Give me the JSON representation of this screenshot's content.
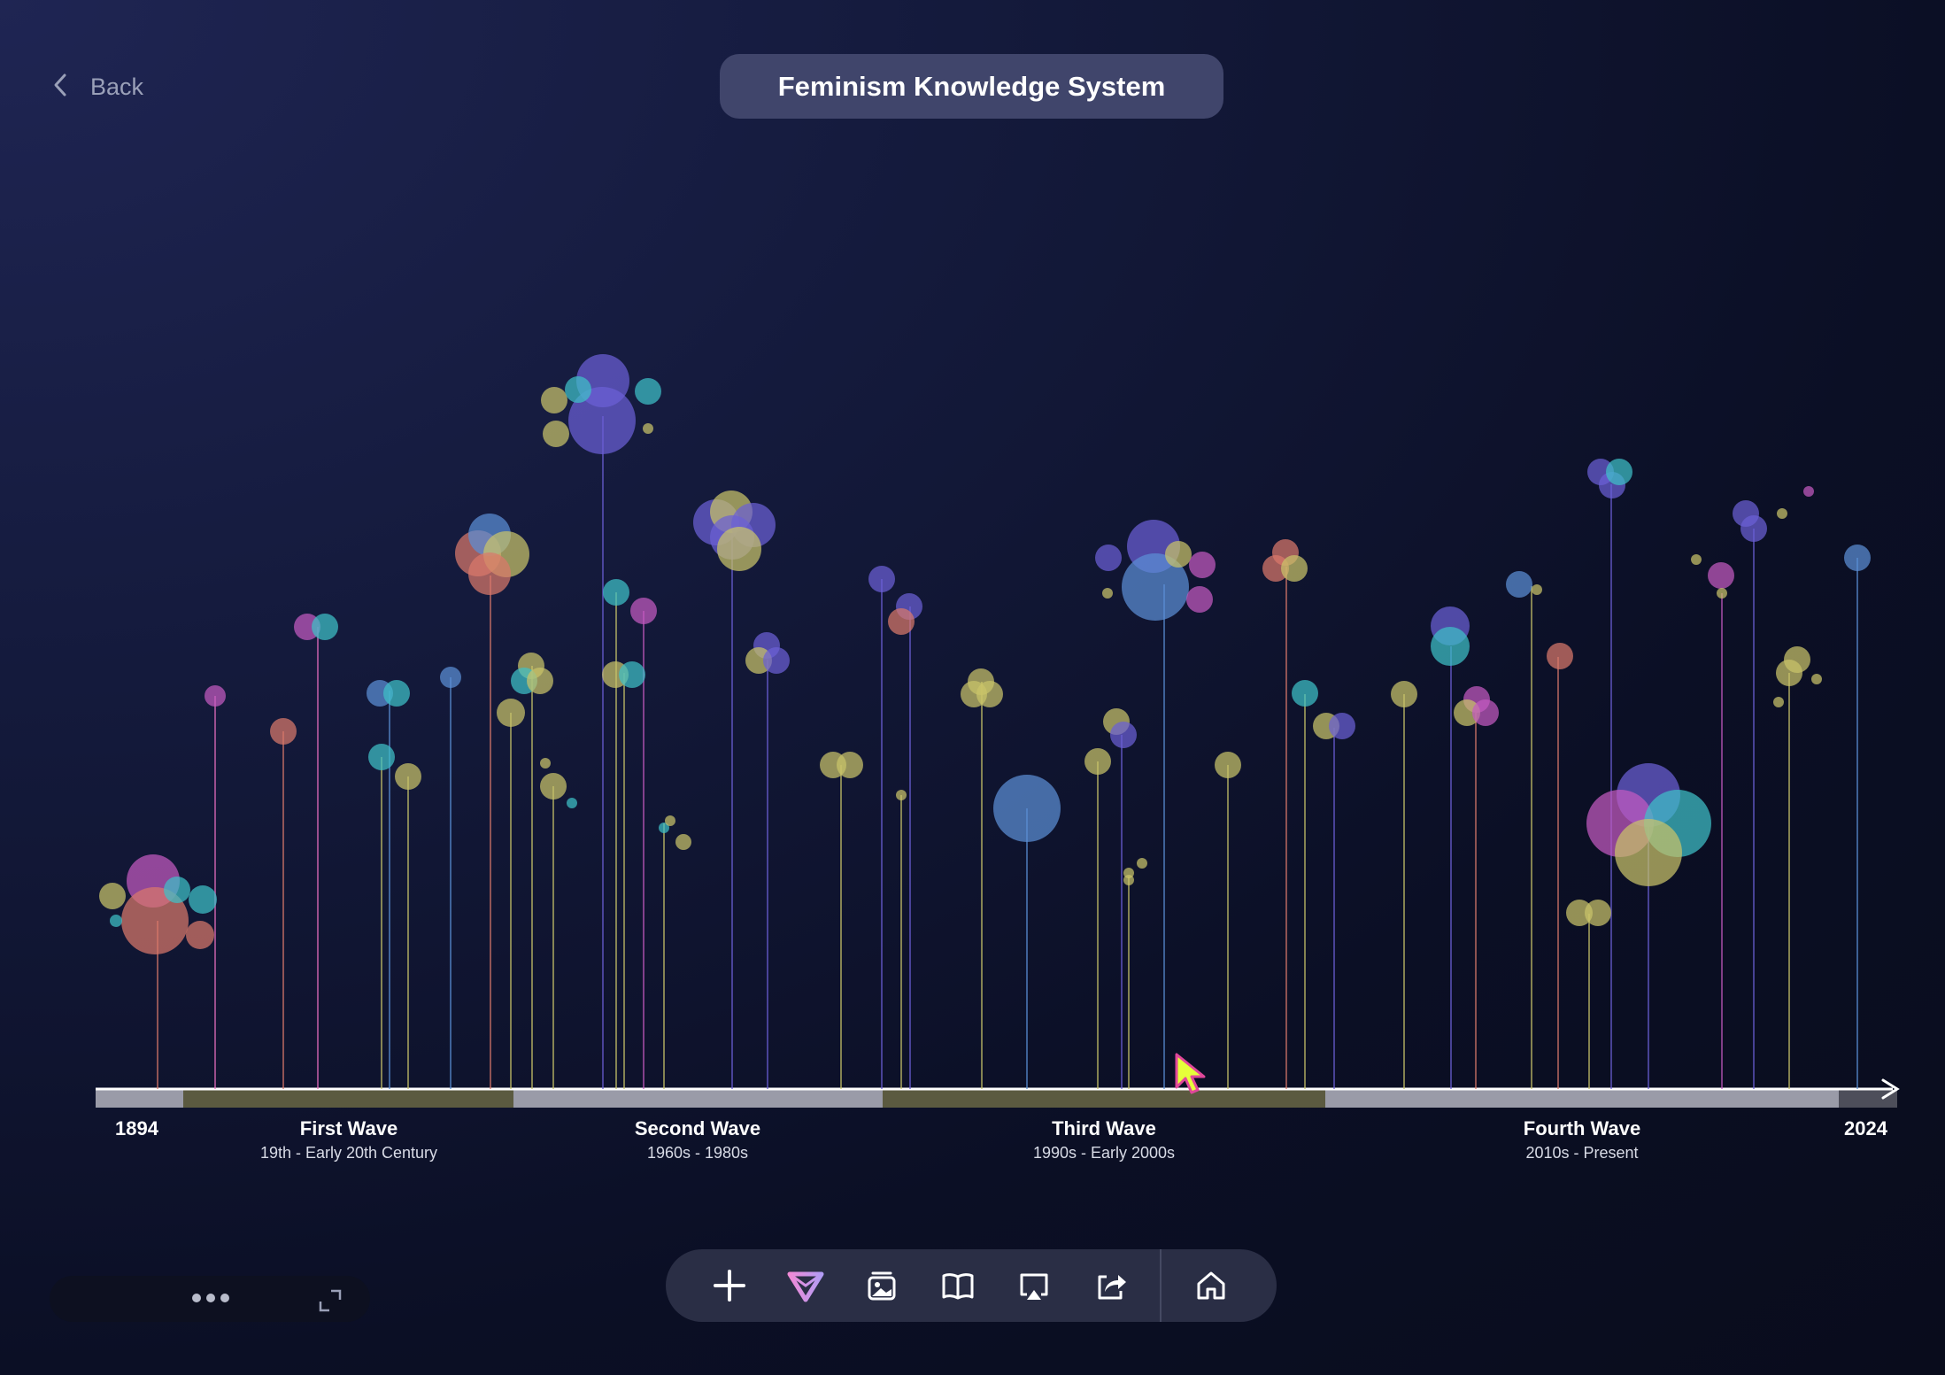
{
  "header": {
    "back_label": "Back",
    "title": "Feminism Knowledge System"
  },
  "timeline": {
    "start_year": "1894",
    "end_year": "2024",
    "waves": [
      {
        "name": "First Wave",
        "period": "19th - Early 20th Century"
      },
      {
        "name": "Second Wave",
        "period": "1960s - 1980s"
      },
      {
        "name": "Third Wave",
        "period": "1990s - Early 2000s"
      },
      {
        "name": "Fourth Wave",
        "period": "2010s - Present"
      }
    ]
  },
  "colors": {
    "purple": "#6b5fd6",
    "teal": "#3fc0c8",
    "olive": "#c9c46a",
    "salmon": "#d9796b",
    "magenta": "#c45ac0",
    "blue": "#5b8fd6",
    "pink": "#e86fbf"
  },
  "toolbar": {
    "items": [
      "plus-icon",
      "logo-icon",
      "gallery-icon",
      "book-icon",
      "airplay-icon",
      "share-icon",
      "home-icon"
    ]
  },
  "mini_bar": {
    "items": [
      "more-icon",
      "expand-icon"
    ]
  }
}
